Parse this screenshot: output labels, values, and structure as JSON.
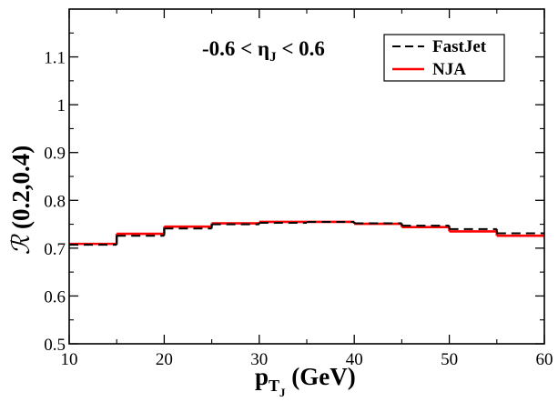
{
  "chart_data": {
    "type": "line",
    "step": true,
    "annotation": {
      "pre": "-0.6 < η",
      "sub": "J",
      "post": " < 0.6"
    },
    "xlabel": {
      "main": "p",
      "sub": "T",
      "subsub": "J",
      "rest": " (GeV)"
    },
    "ylabel": {
      "script": "ℛ",
      "rest": " (0.2,0.4)"
    },
    "xlim": [
      10,
      60
    ],
    "ylim": [
      0.5,
      1.2
    ],
    "xticks": [
      10,
      20,
      30,
      40,
      50,
      60
    ],
    "xtick_labels": [
      "10",
      "20",
      "30",
      "40",
      "50",
      "60"
    ],
    "yticks": [
      0.5,
      0.6,
      0.7,
      0.8,
      0.9,
      1.0,
      1.1
    ],
    "ytick_labels": [
      "0.5",
      "0.6",
      "0.7",
      "0.8",
      "0.9",
      "1",
      "1.1"
    ],
    "legend_position": "top-right",
    "bin_edges": [
      10,
      15,
      20,
      25,
      30,
      35,
      40,
      45,
      50,
      55,
      60
    ],
    "series": [
      {
        "name": "FastJet",
        "color": "#000000",
        "style": "dashed",
        "values": [
          0.707,
          0.726,
          0.741,
          0.75,
          0.753,
          0.755,
          0.752,
          0.747,
          0.74,
          0.731
        ]
      },
      {
        "name": "NJA",
        "color": "#ff0000",
        "style": "solid",
        "values": [
          0.709,
          0.73,
          0.745,
          0.752,
          0.755,
          0.755,
          0.751,
          0.744,
          0.735,
          0.726
        ]
      }
    ]
  }
}
